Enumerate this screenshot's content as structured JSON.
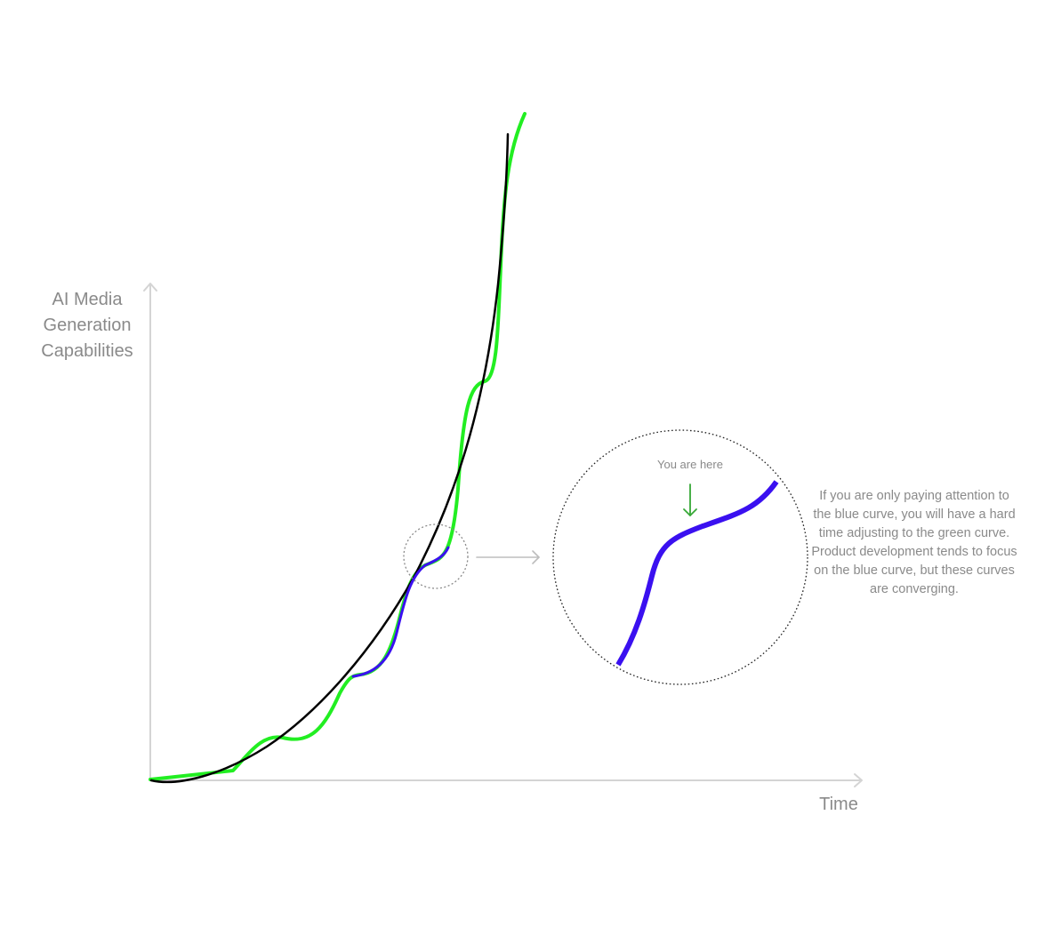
{
  "axes": {
    "y_label_lines": [
      "AI Media",
      "Generation",
      "Capabilities"
    ],
    "x_label": "Time"
  },
  "zoom": {
    "marker": "You are here"
  },
  "note": "If you are only paying attention to the blue curve, you will have a hard time adjusting to the green curve. Product development tends to focus on the blue curve, but these curves are converging.",
  "colors": {
    "green_curve": "#22ee22",
    "blue_curve": "#3a10f0",
    "black_curve": "#000000",
    "axis": "#d4d4d4",
    "arrow_green": "#36a836",
    "text": "#8a8a8a"
  }
}
